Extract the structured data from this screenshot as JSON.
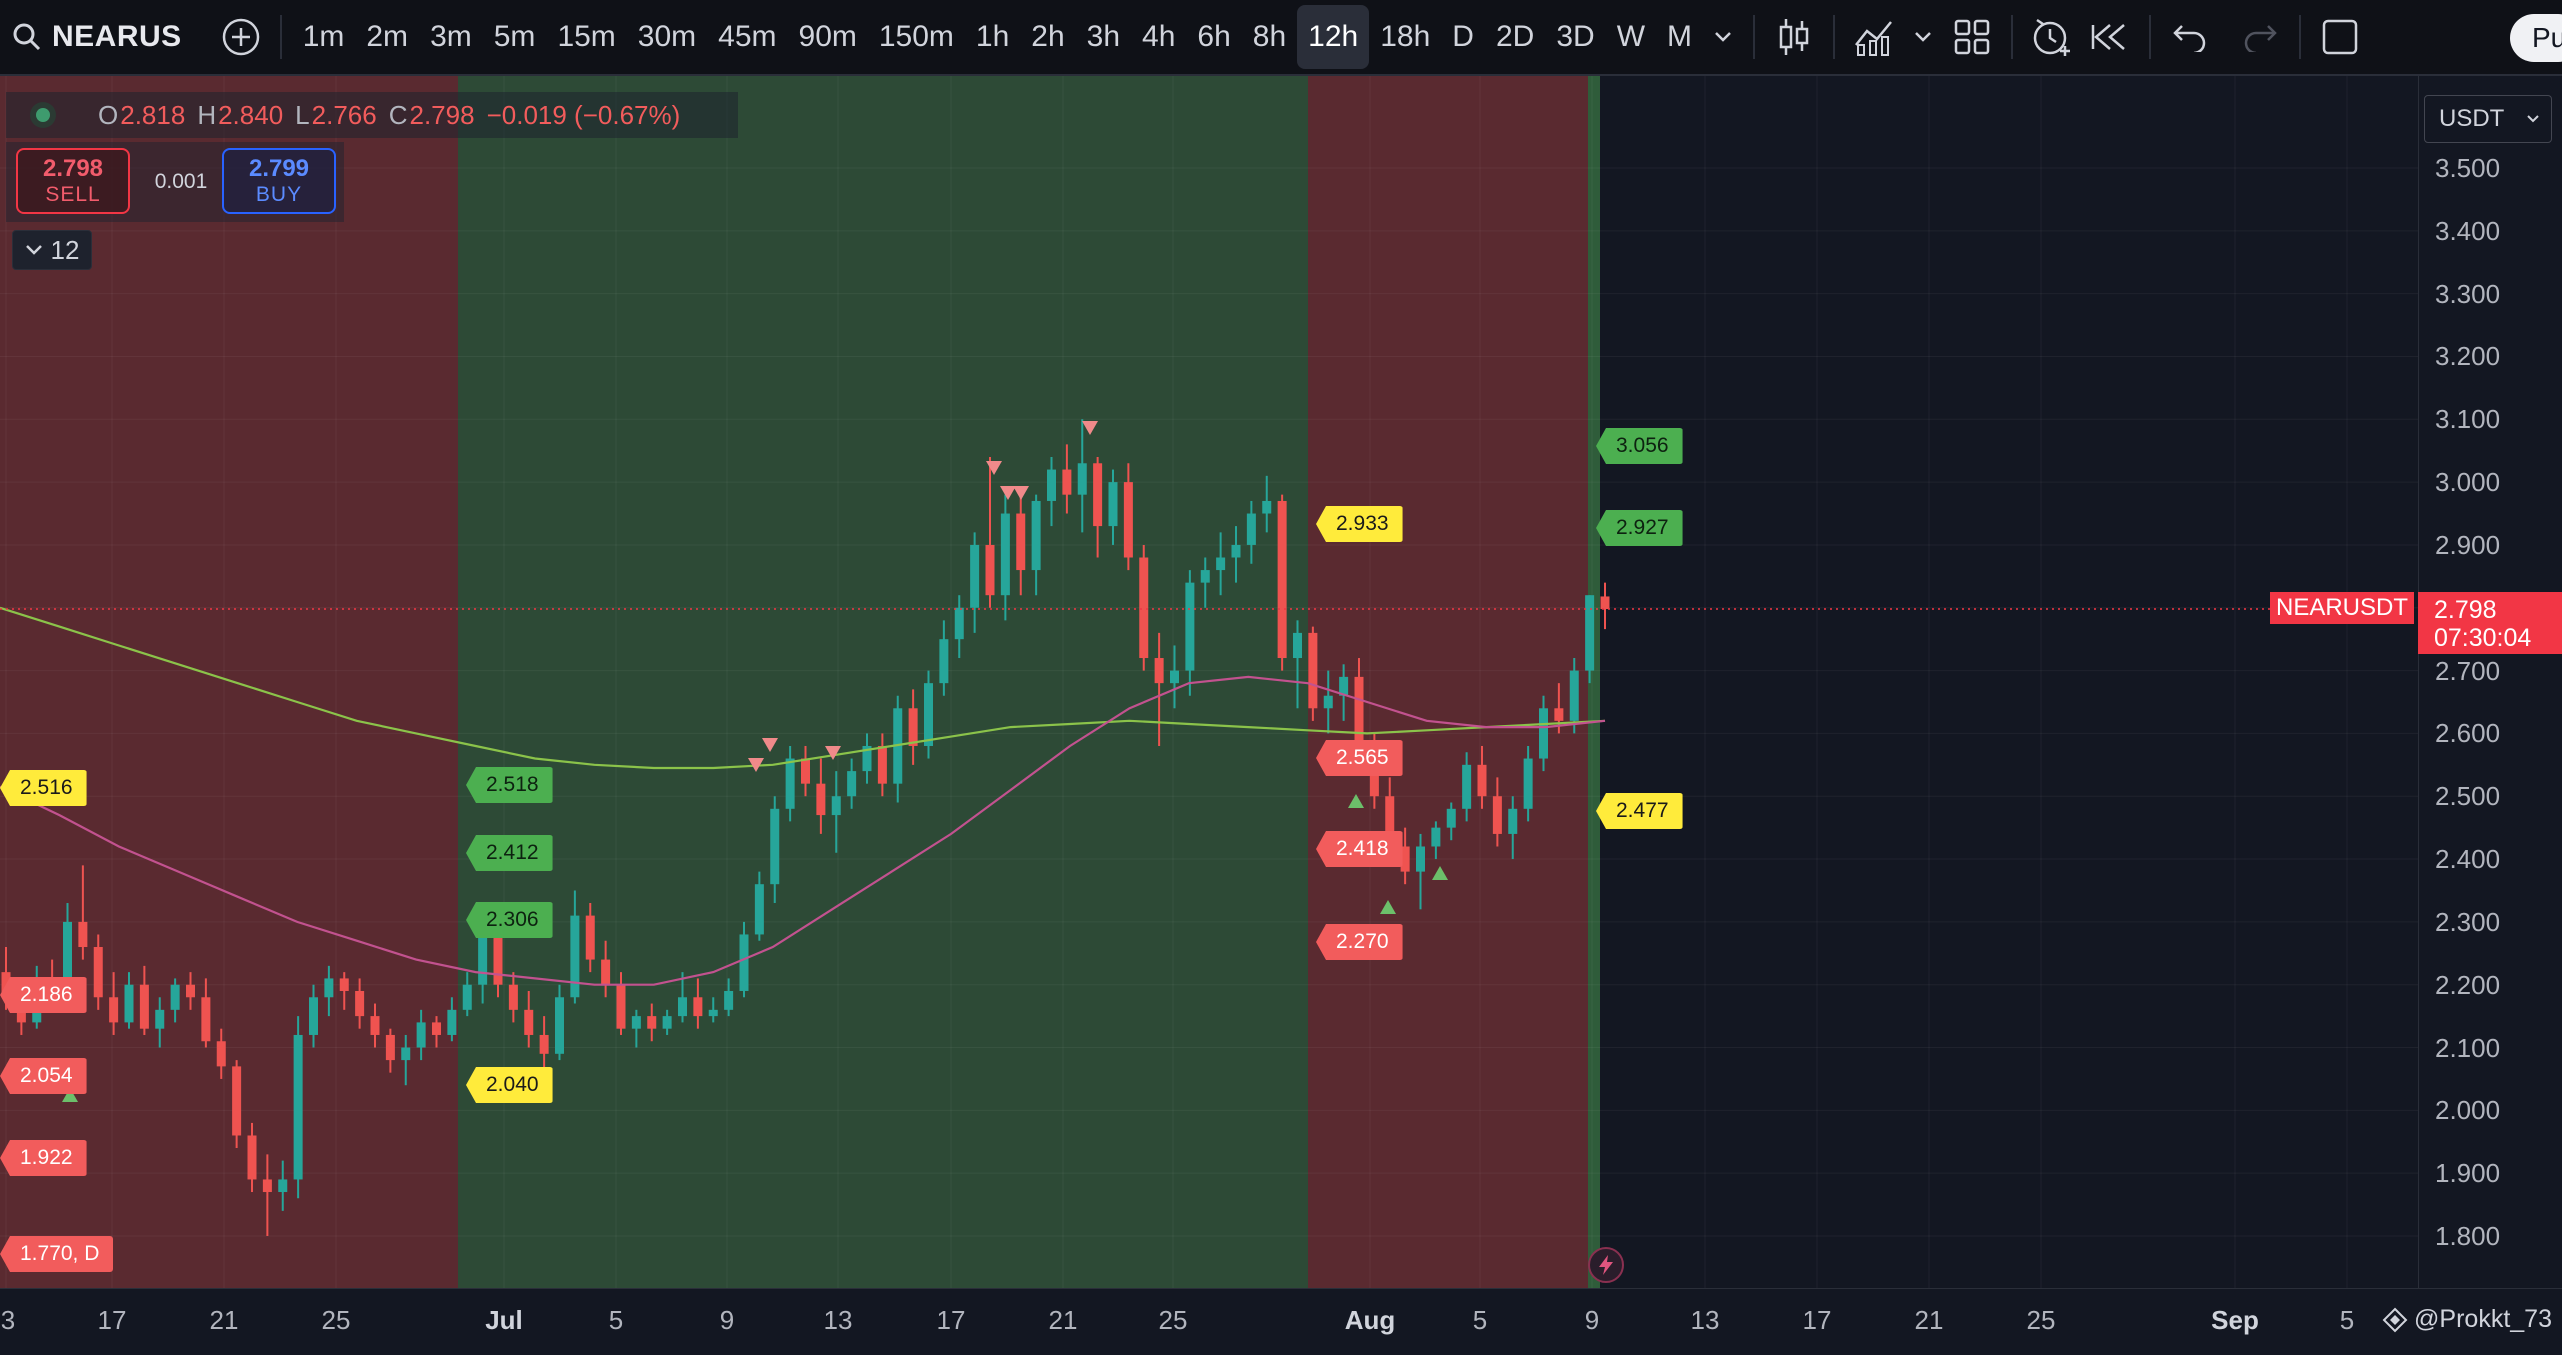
{
  "toolbar": {
    "symbol": "NEARUS",
    "timeframes": [
      "1m",
      "2m",
      "3m",
      "5m",
      "15m",
      "30m",
      "45m",
      "90m",
      "150m",
      "1h",
      "2h",
      "3h",
      "4h",
      "6h",
      "8h",
      "12h",
      "18h",
      "D",
      "2D",
      "3D",
      "W",
      "M"
    ],
    "active_timeframe": "12h",
    "publish_label": "Pu",
    "icons": [
      "search-icon",
      "add-symbol-icon",
      "timeframe-chevron-icon",
      "candle-style-icon",
      "indicators-icon",
      "indicators-chevron-icon",
      "layout-grid-icon",
      "alert-clock-icon",
      "replay-icon",
      "undo-icon",
      "redo-icon",
      "fullscreen-icon"
    ]
  },
  "legend": {
    "open_label": "O",
    "open": "2.818",
    "high_label": "H",
    "high": "2.840",
    "low_label": "L",
    "low": "2.766",
    "close_label": "C",
    "close": "2.798",
    "change": "−0.019 (−0.67%)"
  },
  "trade": {
    "sell_price": "2.798",
    "sell_label": "SELL",
    "spread": "0.001",
    "buy_price": "2.799",
    "buy_label": "BUY",
    "collapse_count": "12"
  },
  "axis": {
    "currency": "USDT",
    "price_ticks": [
      "3.500",
      "3.400",
      "3.300",
      "3.200",
      "3.100",
      "3.000",
      "2.900",
      "2.800",
      "2.700",
      "2.600",
      "2.500",
      "2.400",
      "2.300",
      "2.200",
      "2.100",
      "2.000",
      "1.900",
      "1.800"
    ],
    "last_price": "2.798",
    "countdown": "07:30:04",
    "symbol_tag": "NEARUSDT",
    "time_ticks": [
      "3",
      "17",
      "21",
      "25",
      "Jul",
      "5",
      "9",
      "13",
      "17",
      "21",
      "25",
      "Aug",
      "5",
      "9",
      "13",
      "17",
      "21",
      "25",
      "Sep",
      "5"
    ],
    "bold_ticks": [
      "Jul",
      "Aug",
      "Sep"
    ],
    "watermark": "@Prokkt_73"
  },
  "level_labels": {
    "green": [
      "3.056",
      "2.927",
      "2.518",
      "2.412",
      "2.306"
    ],
    "red": [
      "2.565",
      "2.418",
      "2.270",
      "2.186",
      "2.054",
      "1.922",
      "1.770, D"
    ],
    "yellow": [
      "2.933",
      "2.516",
      "2.477",
      "2.040"
    ]
  },
  "colors": {
    "background": "#131722",
    "up": "#26a69a",
    "down": "#ef5350",
    "bear_zone": "#5a2a30",
    "bull_zone": "#2d4a36",
    "ma_fast": "#c2528f",
    "ma_slow": "#8bc34a",
    "label_green": "#4caf50",
    "label_red": "#f25c5c",
    "label_yellow": "#ffeb3b"
  },
  "chart_data": {
    "type": "candlestick",
    "xlabel": "",
    "ylabel": "",
    "ylim": [
      1.75,
      3.56
    ],
    "interval": "12h",
    "candles": [
      {
        "o": 2.22,
        "h": 2.26,
        "l": 2.16,
        "c": 2.18
      },
      {
        "o": 2.18,
        "h": 2.21,
        "l": 2.12,
        "c": 2.14
      },
      {
        "o": 2.14,
        "h": 2.23,
        "l": 2.13,
        "c": 2.21
      },
      {
        "o": 2.21,
        "h": 2.24,
        "l": 2.18,
        "c": 2.19
      },
      {
        "o": 2.19,
        "h": 2.33,
        "l": 2.18,
        "c": 2.3
      },
      {
        "o": 2.3,
        "h": 2.39,
        "l": 2.24,
        "c": 2.26
      },
      {
        "o": 2.26,
        "h": 2.28,
        "l": 2.16,
        "c": 2.18
      },
      {
        "o": 2.18,
        "h": 2.22,
        "l": 2.12,
        "c": 2.14
      },
      {
        "o": 2.14,
        "h": 2.22,
        "l": 2.13,
        "c": 2.2
      },
      {
        "o": 2.2,
        "h": 2.23,
        "l": 2.12,
        "c": 2.13
      },
      {
        "o": 2.13,
        "h": 2.18,
        "l": 2.1,
        "c": 2.16
      },
      {
        "o": 2.16,
        "h": 2.21,
        "l": 2.14,
        "c": 2.2
      },
      {
        "o": 2.2,
        "h": 2.22,
        "l": 2.16,
        "c": 2.18
      },
      {
        "o": 2.18,
        "h": 2.21,
        "l": 2.1,
        "c": 2.11
      },
      {
        "o": 2.11,
        "h": 2.13,
        "l": 2.05,
        "c": 2.07
      },
      {
        "o": 2.07,
        "h": 2.08,
        "l": 1.94,
        "c": 1.96
      },
      {
        "o": 1.96,
        "h": 1.98,
        "l": 1.87,
        "c": 1.89
      },
      {
        "o": 1.89,
        "h": 1.93,
        "l": 1.8,
        "c": 1.87
      },
      {
        "o": 1.87,
        "h": 1.92,
        "l": 1.84,
        "c": 1.89
      },
      {
        "o": 1.89,
        "h": 2.15,
        "l": 1.86,
        "c": 2.12
      },
      {
        "o": 2.12,
        "h": 2.2,
        "l": 2.1,
        "c": 2.18
      },
      {
        "o": 2.18,
        "h": 2.23,
        "l": 2.15,
        "c": 2.21
      },
      {
        "o": 2.21,
        "h": 2.22,
        "l": 2.16,
        "c": 2.19
      },
      {
        "o": 2.19,
        "h": 2.21,
        "l": 2.13,
        "c": 2.15
      },
      {
        "o": 2.15,
        "h": 2.17,
        "l": 2.1,
        "c": 2.12
      },
      {
        "o": 2.12,
        "h": 2.13,
        "l": 2.06,
        "c": 2.08
      },
      {
        "o": 2.08,
        "h": 2.12,
        "l": 2.04,
        "c": 2.1
      },
      {
        "o": 2.1,
        "h": 2.16,
        "l": 2.08,
        "c": 2.14
      },
      {
        "o": 2.14,
        "h": 2.15,
        "l": 2.1,
        "c": 2.12
      },
      {
        "o": 2.12,
        "h": 2.18,
        "l": 2.11,
        "c": 2.16
      },
      {
        "o": 2.16,
        "h": 2.22,
        "l": 2.15,
        "c": 2.2
      },
      {
        "o": 2.2,
        "h": 2.33,
        "l": 2.17,
        "c": 2.3
      },
      {
        "o": 2.3,
        "h": 2.31,
        "l": 2.18,
        "c": 2.2
      },
      {
        "o": 2.2,
        "h": 2.22,
        "l": 2.14,
        "c": 2.16
      },
      {
        "o": 2.16,
        "h": 2.19,
        "l": 2.1,
        "c": 2.12
      },
      {
        "o": 2.12,
        "h": 2.15,
        "l": 2.06,
        "c": 2.09
      },
      {
        "o": 2.09,
        "h": 2.2,
        "l": 2.08,
        "c": 2.18
      },
      {
        "o": 2.18,
        "h": 2.35,
        "l": 2.17,
        "c": 2.31
      },
      {
        "o": 2.31,
        "h": 2.33,
        "l": 2.22,
        "c": 2.24
      },
      {
        "o": 2.24,
        "h": 2.27,
        "l": 2.18,
        "c": 2.2
      },
      {
        "o": 2.2,
        "h": 2.22,
        "l": 2.12,
        "c": 2.13
      },
      {
        "o": 2.13,
        "h": 2.16,
        "l": 2.1,
        "c": 2.15
      },
      {
        "o": 2.15,
        "h": 2.17,
        "l": 2.11,
        "c": 2.13
      },
      {
        "o": 2.13,
        "h": 2.16,
        "l": 2.12,
        "c": 2.15
      },
      {
        "o": 2.15,
        "h": 2.22,
        "l": 2.14,
        "c": 2.18
      },
      {
        "o": 2.18,
        "h": 2.21,
        "l": 2.13,
        "c": 2.15
      },
      {
        "o": 2.15,
        "h": 2.18,
        "l": 2.14,
        "c": 2.16
      },
      {
        "o": 2.16,
        "h": 2.21,
        "l": 2.15,
        "c": 2.19
      },
      {
        "o": 2.19,
        "h": 2.3,
        "l": 2.18,
        "c": 2.28
      },
      {
        "o": 2.28,
        "h": 2.38,
        "l": 2.27,
        "c": 2.36
      },
      {
        "o": 2.36,
        "h": 2.5,
        "l": 2.33,
        "c": 2.48
      },
      {
        "o": 2.48,
        "h": 2.58,
        "l": 2.46,
        "c": 2.56
      },
      {
        "o": 2.56,
        "h": 2.58,
        "l": 2.5,
        "c": 2.52
      },
      {
        "o": 2.52,
        "h": 2.56,
        "l": 2.44,
        "c": 2.47
      },
      {
        "o": 2.47,
        "h": 2.54,
        "l": 2.41,
        "c": 2.5
      },
      {
        "o": 2.5,
        "h": 2.56,
        "l": 2.48,
        "c": 2.54
      },
      {
        "o": 2.54,
        "h": 2.6,
        "l": 2.52,
        "c": 2.58
      },
      {
        "o": 2.58,
        "h": 2.6,
        "l": 2.5,
        "c": 2.52
      },
      {
        "o": 2.52,
        "h": 2.66,
        "l": 2.49,
        "c": 2.64
      },
      {
        "o": 2.64,
        "h": 2.67,
        "l": 2.55,
        "c": 2.58
      },
      {
        "o": 2.58,
        "h": 2.7,
        "l": 2.56,
        "c": 2.68
      },
      {
        "o": 2.68,
        "h": 2.78,
        "l": 2.66,
        "c": 2.75
      },
      {
        "o": 2.75,
        "h": 2.82,
        "l": 2.72,
        "c": 2.8
      },
      {
        "o": 2.8,
        "h": 2.92,
        "l": 2.76,
        "c": 2.9
      },
      {
        "o": 2.9,
        "h": 3.04,
        "l": 2.8,
        "c": 2.82
      },
      {
        "o": 2.82,
        "h": 2.98,
        "l": 2.78,
        "c": 2.95
      },
      {
        "o": 2.95,
        "h": 2.99,
        "l": 2.82,
        "c": 2.86
      },
      {
        "o": 2.86,
        "h": 2.98,
        "l": 2.82,
        "c": 2.97
      },
      {
        "o": 2.97,
        "h": 3.04,
        "l": 2.93,
        "c": 3.02
      },
      {
        "o": 3.02,
        "h": 3.06,
        "l": 2.95,
        "c": 2.98
      },
      {
        "o": 2.98,
        "h": 3.1,
        "l": 2.92,
        "c": 3.03
      },
      {
        "o": 3.03,
        "h": 3.04,
        "l": 2.88,
        "c": 2.93
      },
      {
        "o": 2.93,
        "h": 3.02,
        "l": 2.9,
        "c": 3.0
      },
      {
        "o": 3.0,
        "h": 3.03,
        "l": 2.86,
        "c": 2.88
      },
      {
        "o": 2.88,
        "h": 2.9,
        "l": 2.7,
        "c": 2.72
      },
      {
        "o": 2.72,
        "h": 2.76,
        "l": 2.58,
        "c": 2.68
      },
      {
        "o": 2.68,
        "h": 2.74,
        "l": 2.64,
        "c": 2.7
      },
      {
        "o": 2.7,
        "h": 2.86,
        "l": 2.66,
        "c": 2.84
      },
      {
        "o": 2.84,
        "h": 2.88,
        "l": 2.8,
        "c": 2.86
      },
      {
        "o": 2.86,
        "h": 2.92,
        "l": 2.82,
        "c": 2.88
      },
      {
        "o": 2.88,
        "h": 2.93,
        "l": 2.84,
        "c": 2.9
      },
      {
        "o": 2.9,
        "h": 2.97,
        "l": 2.87,
        "c": 2.95
      },
      {
        "o": 2.95,
        "h": 3.01,
        "l": 2.92,
        "c": 2.97
      },
      {
        "o": 2.97,
        "h": 2.98,
        "l": 2.7,
        "c": 2.72
      },
      {
        "o": 2.72,
        "h": 2.78,
        "l": 2.64,
        "c": 2.76
      },
      {
        "o": 2.76,
        "h": 2.77,
        "l": 2.62,
        "c": 2.64
      },
      {
        "o": 2.64,
        "h": 2.7,
        "l": 2.6,
        "c": 2.66
      },
      {
        "o": 2.66,
        "h": 2.71,
        "l": 2.62,
        "c": 2.69
      },
      {
        "o": 2.69,
        "h": 2.72,
        "l": 2.56,
        "c": 2.58
      },
      {
        "o": 2.58,
        "h": 2.6,
        "l": 2.48,
        "c": 2.5
      },
      {
        "o": 2.5,
        "h": 2.53,
        "l": 2.4,
        "c": 2.42
      },
      {
        "o": 2.42,
        "h": 2.45,
        "l": 2.36,
        "c": 2.38
      },
      {
        "o": 2.38,
        "h": 2.44,
        "l": 2.32,
        "c": 2.42
      },
      {
        "o": 2.42,
        "h": 2.46,
        "l": 2.4,
        "c": 2.45
      },
      {
        "o": 2.45,
        "h": 2.49,
        "l": 2.43,
        "c": 2.48
      },
      {
        "o": 2.48,
        "h": 2.57,
        "l": 2.46,
        "c": 2.55
      },
      {
        "o": 2.55,
        "h": 2.58,
        "l": 2.48,
        "c": 2.5
      },
      {
        "o": 2.5,
        "h": 2.53,
        "l": 2.42,
        "c": 2.44
      },
      {
        "o": 2.44,
        "h": 2.5,
        "l": 2.4,
        "c": 2.48
      },
      {
        "o": 2.48,
        "h": 2.58,
        "l": 2.46,
        "c": 2.56
      },
      {
        "o": 2.56,
        "h": 2.66,
        "l": 2.54,
        "c": 2.64
      },
      {
        "o": 2.64,
        "h": 2.68,
        "l": 2.6,
        "c": 2.62
      },
      {
        "o": 2.62,
        "h": 2.72,
        "l": 2.6,
        "c": 2.7
      },
      {
        "o": 2.7,
        "h": 2.82,
        "l": 2.68,
        "c": 2.82
      },
      {
        "o": 2.818,
        "h": 2.84,
        "l": 2.766,
        "c": 2.798
      }
    ],
    "ma_fast": [
      2.515,
      2.47,
      2.42,
      2.38,
      2.34,
      2.3,
      2.27,
      2.24,
      2.22,
      2.21,
      2.2,
      2.2,
      2.22,
      2.26,
      2.32,
      2.38,
      2.44,
      2.51,
      2.58,
      2.64,
      2.68,
      2.69,
      2.68,
      2.65,
      2.62,
      2.61,
      2.61,
      2.62
    ],
    "ma_slow": [
      2.8,
      2.77,
      2.74,
      2.71,
      2.68,
      2.65,
      2.62,
      2.6,
      2.58,
      2.56,
      2.55,
      2.545,
      2.545,
      2.55,
      2.565,
      2.58,
      2.595,
      2.61,
      2.615,
      2.62,
      2.615,
      2.61,
      2.605,
      2.6,
      2.605,
      2.61,
      2.615,
      2.62
    ]
  }
}
